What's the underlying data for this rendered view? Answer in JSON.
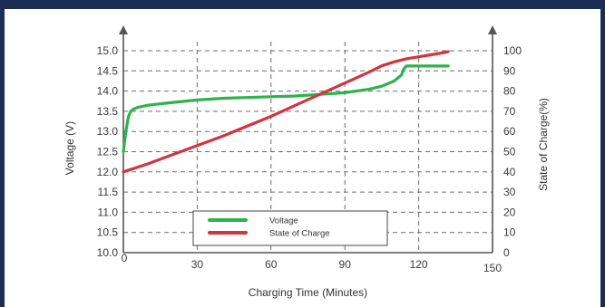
{
  "chart_data": {
    "type": "line",
    "title": "",
    "xlabel": "Charging Time (Minutes)",
    "ylabel_left": "Voltage (V)",
    "ylabel_right": "State of Charge(%)",
    "x_ticks": [
      "0",
      "30",
      "60",
      "90",
      "120",
      "150"
    ],
    "y_left_ticks": [
      "10.0",
      "10.5",
      "11.0",
      "11.5",
      "12.0",
      "12.5",
      "13.0",
      "13.5",
      "14.0",
      "14.5",
      "15.0"
    ],
    "y_right_ticks": [
      "0",
      "10",
      "20",
      "30",
      "40",
      "50",
      "60",
      "70",
      "80",
      "90",
      "100"
    ],
    "xlim": [
      0,
      150
    ],
    "ylim_left": [
      10.0,
      15.0
    ],
    "ylim_right": [
      0,
      100
    ],
    "grid": "dashed",
    "legend_placement": "bottom-center",
    "series": [
      {
        "name": "Voltage",
        "axis": "left",
        "color": "#2db34a",
        "x": [
          0,
          1,
          2,
          3,
          4,
          6,
          10,
          20,
          30,
          40,
          50,
          60,
          70,
          80,
          90,
          100,
          105,
          110,
          113,
          114,
          115,
          117,
          120,
          125,
          130,
          132
        ],
        "y": [
          12.5,
          13.0,
          13.35,
          13.5,
          13.55,
          13.6,
          13.65,
          13.72,
          13.78,
          13.82,
          13.84,
          13.86,
          13.88,
          13.92,
          13.96,
          14.05,
          14.12,
          14.25,
          14.4,
          14.55,
          14.62,
          14.62,
          14.62,
          14.62,
          14.62,
          14.62
        ]
      },
      {
        "name": "State of Charge",
        "axis": "right",
        "color": "#d3343f",
        "x": [
          0,
          10,
          20,
          30,
          40,
          50,
          60,
          70,
          80,
          90,
          100,
          105,
          110,
          115,
          120,
          125,
          130,
          132
        ],
        "y": [
          40,
          44,
          48.5,
          53,
          57.5,
          62.5,
          67.5,
          73,
          78.5,
          84,
          89.5,
          92.5,
          94.5,
          96,
          97,
          98,
          99,
          99.5
        ]
      }
    ]
  }
}
